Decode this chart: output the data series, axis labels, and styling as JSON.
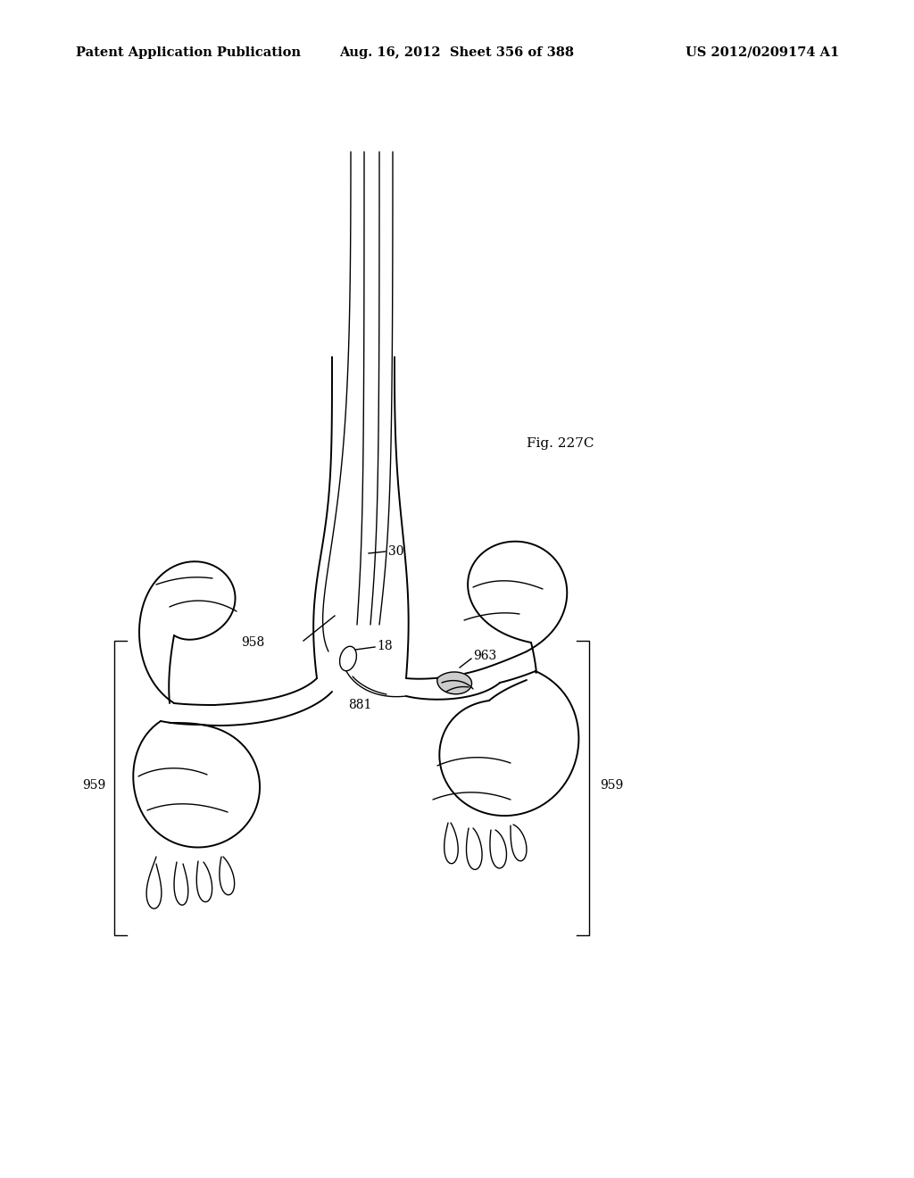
{
  "fig_label": "Fig. 227C",
  "header_left": "Patent Application Publication",
  "header_center": "Aug. 16, 2012  Sheet 356 of 388",
  "header_right": "US 2012/0209174 A1",
  "bg_color": "#ffffff",
  "line_color": "#000000",
  "fontsize_header": 10.5,
  "fontsize_label": 10,
  "fontsize_fig": 11
}
